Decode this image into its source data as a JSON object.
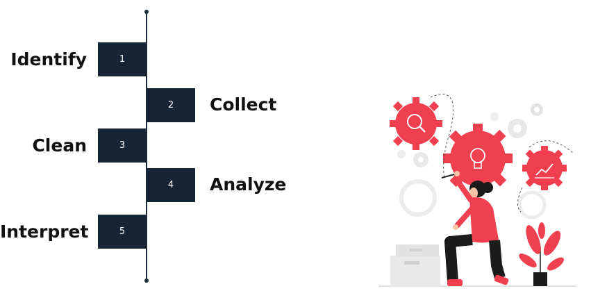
{
  "steps": [
    {
      "number": "1",
      "label": "Identify"
    },
    {
      "number": "2",
      "label": "Collect"
    },
    {
      "number": "3",
      "label": "Clean"
    },
    {
      "number": "4",
      "label": "Analyze"
    },
    {
      "number": "5",
      "label": "Interpret"
    }
  ],
  "colors": {
    "box": "#172436",
    "accent": "#f0404f",
    "gear_gray": "#e6e6e6",
    "dark": "#1c2a3a"
  },
  "illustration": {
    "icon": "person-adjusting-gears-illustration"
  }
}
